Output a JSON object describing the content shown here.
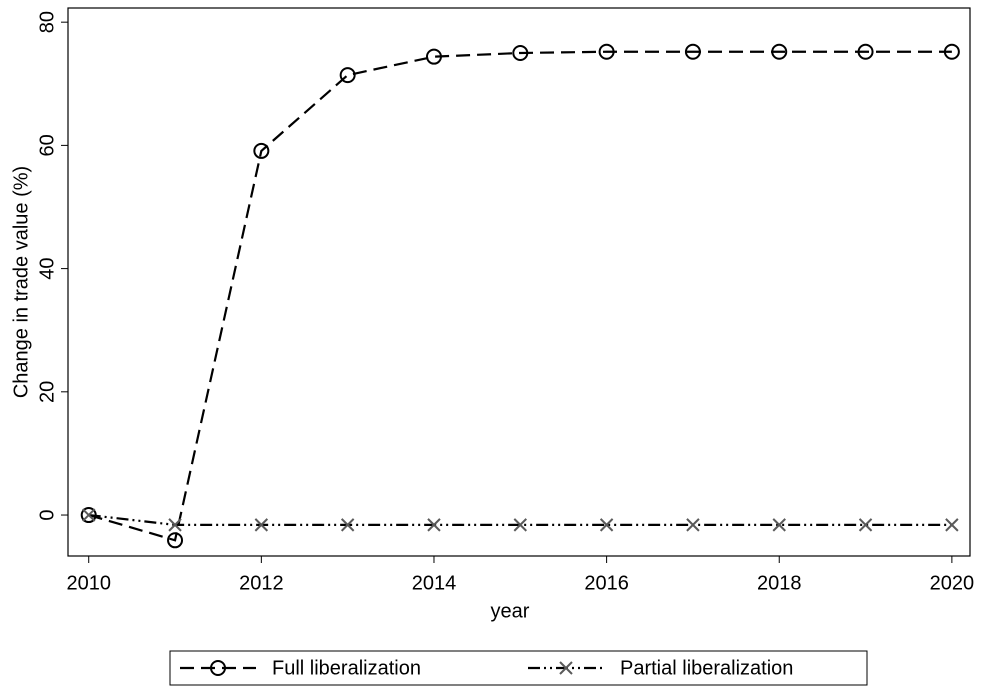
{
  "chart_data": {
    "type": "line",
    "y_label": "Change in trade value (%)",
    "x_label": "year",
    "x": [
      2010,
      2011,
      2012,
      2013,
      2014,
      2015,
      2016,
      2017,
      2018,
      2019,
      2020
    ],
    "series": [
      {
        "name": "Full liberalization",
        "color": "#000000",
        "marker": "circle",
        "dash": "14 7",
        "values": [
          0,
          -4.1,
          59.1,
          71.4,
          74.4,
          75.0,
          75.2,
          75.2,
          75.2,
          75.2,
          75.2
        ]
      },
      {
        "name": "Partial liberalization",
        "color": "#5a5a5a",
        "marker": "x",
        "dash": "12 4 2 4 2 4",
        "values": [
          0,
          -1.6,
          -1.6,
          -1.6,
          -1.6,
          -1.6,
          -1.6,
          -1.6,
          -1.6,
          -1.6,
          -1.6
        ]
      }
    ],
    "xlim": [
      2009.76,
      2020.21
    ],
    "xticks": [
      2010,
      2012,
      2014,
      2016,
      2018,
      2020
    ],
    "ylim": [
      -6.65,
      82.3
    ],
    "yticks": [
      0,
      20,
      40,
      60,
      80
    ],
    "grid": false,
    "legend": "bottom"
  }
}
